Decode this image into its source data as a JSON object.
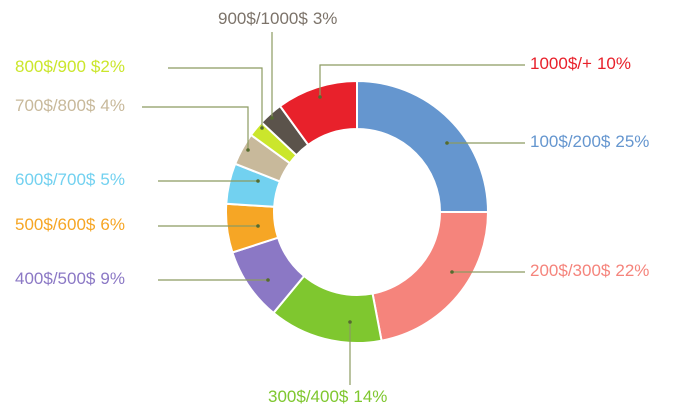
{
  "chart_data": {
    "type": "donut",
    "categories": [
      "100$/200$",
      "200$/300$",
      "300$/400$",
      "400$/500$",
      "500$/600$",
      "600$/700$",
      "700$/800$",
      "800$/900",
      "900$/1000$",
      "1000$/+"
    ],
    "values": [
      25,
      22,
      14,
      9,
      6,
      5,
      4,
      2,
      3,
      10
    ],
    "value_labels": [
      "25%",
      "22%",
      "14%",
      "9%",
      "6%",
      "5%",
      "4%",
      "$2%",
      "3%",
      "10%"
    ],
    "colors": [
      "#6596cf",
      "#f5847c",
      "#7fc72f",
      "#8b78c5",
      "#f6a625",
      "#72d1f0",
      "#c8b99b",
      "#cbe62c",
      "#5b534b",
      "#e8212b"
    ],
    "label_colors": [
      "#6596cf",
      "#f5847c",
      "#7fc72f",
      "#8b78c5",
      "#f6a625",
      "#72d1f0",
      "#c8b99b",
      "#cbe62c",
      "#7c736a",
      "#e8212b"
    ]
  }
}
